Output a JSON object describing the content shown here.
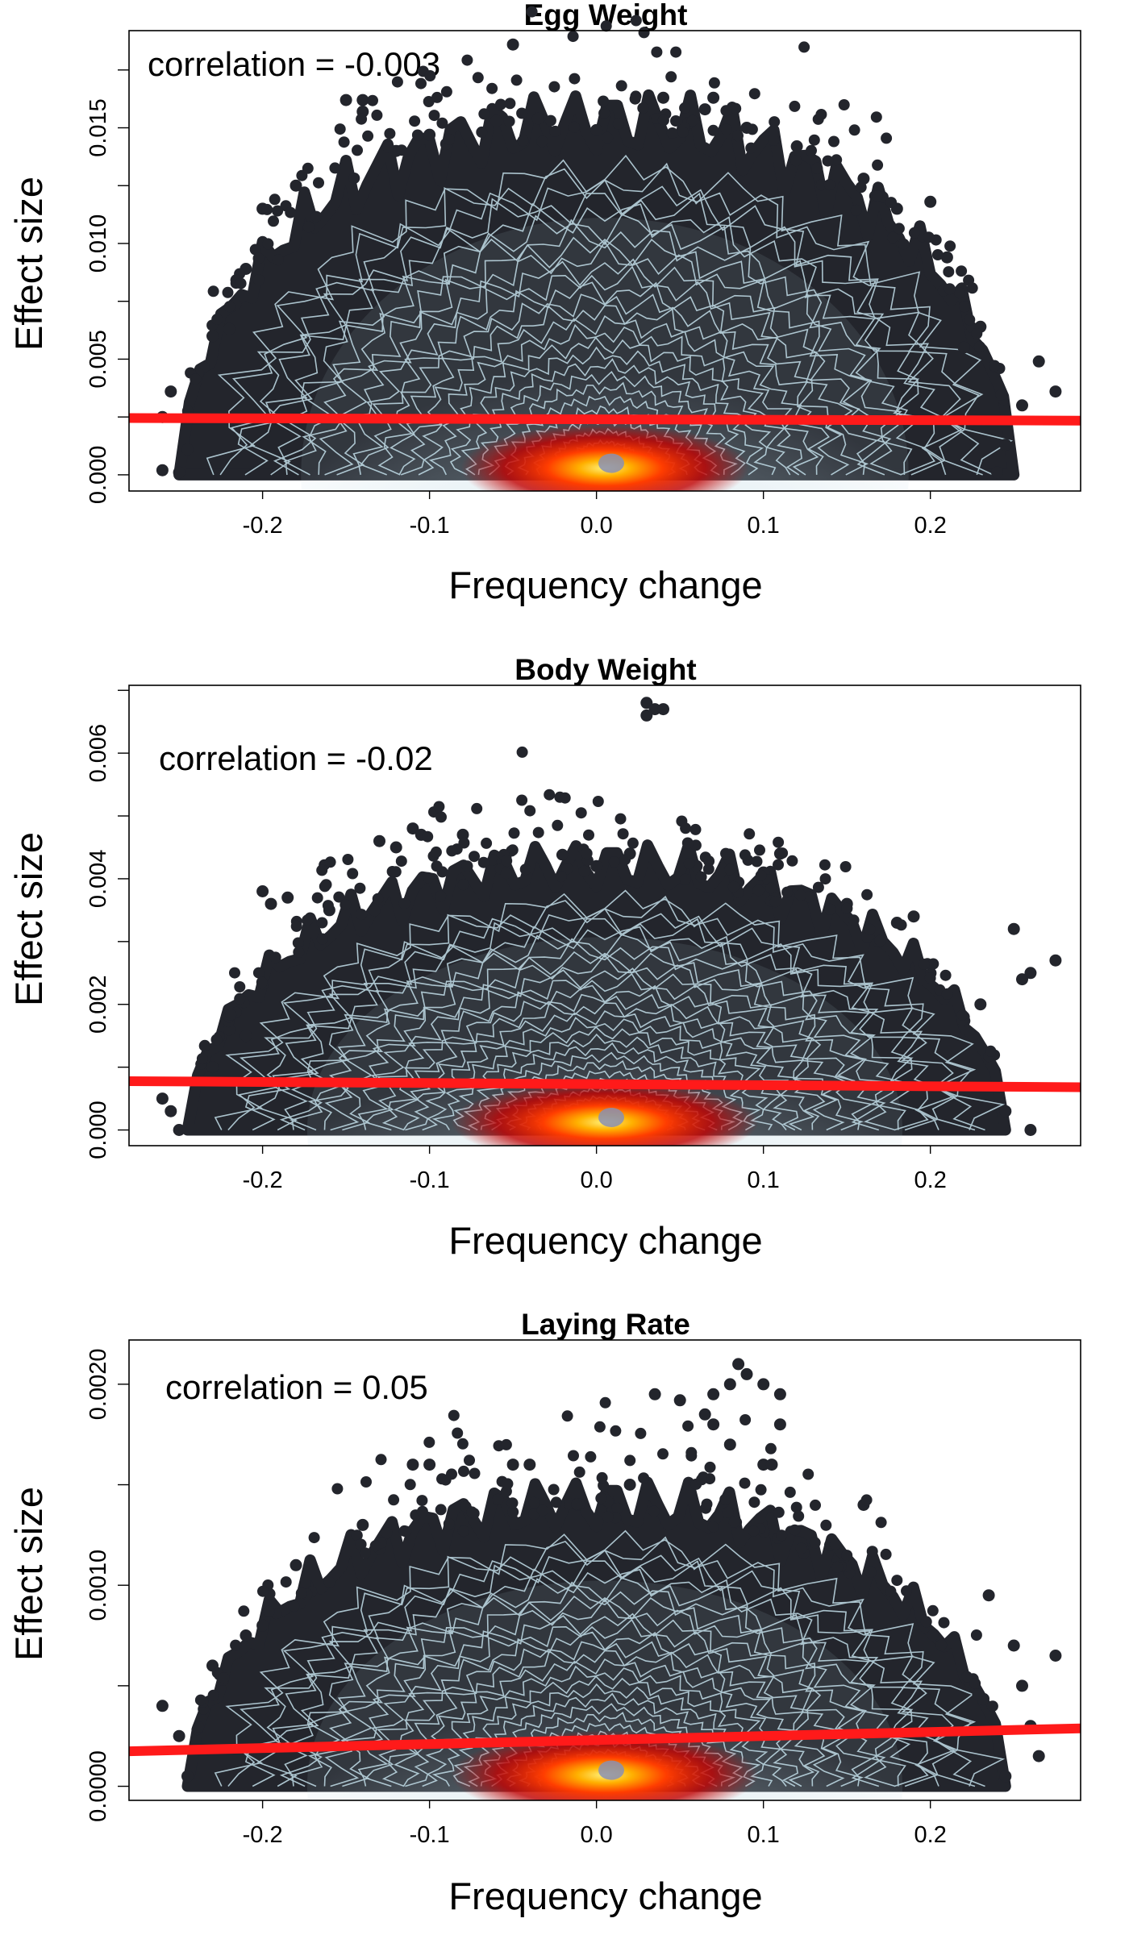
{
  "figure": {
    "background": "#ffffff",
    "colors": {
      "points": "#23252c",
      "contour": "#c3dfea",
      "density_center": "#fff27a",
      "density_mid": "#ff3d00",
      "density_outer": "#c10000",
      "regression_line": "#ff1a1a"
    }
  },
  "chart_data": [
    {
      "type": "scatter",
      "title": "Egg Weight",
      "xlabel": "Frequency change",
      "ylabel": "Effect size",
      "annotation": "correlation = -0.003",
      "xlim": [
        -0.28,
        0.29
      ],
      "ylim": [
        -0.0007,
        0.0192
      ],
      "x_ticks": [
        -0.2,
        -0.1,
        0.0,
        0.1,
        0.2
      ],
      "x_tick_labels": [
        "-0.2",
        "-0.1",
        "0.0",
        "0.1",
        "0.2"
      ],
      "y_ticks": [
        0.0,
        0.0025,
        0.005,
        0.0075,
        0.01,
        0.0125,
        0.015,
        0.0175
      ],
      "y_tick_labels": [
        "0.000",
        "",
        "0.005",
        "",
        "0.010",
        "",
        "0.015",
        ""
      ],
      "density_peak": [
        0.005,
        0.0005
      ],
      "density_spread": [
        0.075,
        0.0035
      ],
      "envelope": {
        "half_width": 0.25,
        "height": 0.0152
      },
      "outliers": [
        [
          -0.05,
          0.0186
        ],
        [
          -0.15,
          0.0162
        ],
        [
          -0.14,
          0.0162
        ],
        [
          -0.14,
          0.0157
        ],
        [
          0.04,
          0.0163
        ],
        [
          0.07,
          0.0163
        ],
        [
          0.065,
          0.0158
        ],
        [
          -0.035,
          0.0154
        ],
        [
          0.055,
          0.0152
        ],
        [
          -0.1,
          0.0147
        ],
        [
          -0.09,
          0.0143
        ],
        [
          -0.2,
          0.0115
        ],
        [
          0.2,
          0.0118
        ],
        [
          0.18,
          0.0115
        ],
        [
          0.22,
          0.0055
        ],
        [
          0.23,
          0.0064
        ],
        [
          -0.22,
          0.0063
        ],
        [
          -0.23,
          0.006
        ],
        [
          -0.26,
          0.0025
        ],
        [
          -0.255,
          0.0036
        ],
        [
          0.265,
          0.0049
        ],
        [
          0.275,
          0.0036
        ],
        [
          0.255,
          0.003
        ],
        [
          -0.26,
          0.0002
        ],
        [
          -0.25,
          0.0001
        ],
        [
          0.24,
          0.0001
        ],
        [
          0.245,
          0.0013
        ],
        [
          -0.245,
          0.0011
        ],
        [
          -0.12,
          0.014
        ],
        [
          0.12,
          0.0142
        ],
        [
          -0.06,
          0.0153
        ],
        [
          0.09,
          0.015
        ],
        [
          0.0,
          0.0149
        ],
        [
          -0.18,
          0.0125
        ],
        [
          0.16,
          0.0128
        ],
        [
          -0.21,
          0.0089
        ],
        [
          0.21,
          0.0094
        ]
      ],
      "regression": {
        "intercept": 0.0024,
        "slope": -0.0002
      }
    },
    {
      "type": "scatter",
      "title": "Body Weight",
      "xlabel": "Frequency change",
      "ylabel": "Effect size",
      "annotation": "correlation = -0.02",
      "xlim": [
        -0.28,
        0.29
      ],
      "ylim": [
        -0.00025,
        0.00708
      ],
      "x_ticks": [
        -0.2,
        -0.1,
        0.0,
        0.1,
        0.2
      ],
      "x_tick_labels": [
        "-0.2",
        "-0.1",
        "0.0",
        "0.1",
        "0.2"
      ],
      "y_ticks": [
        0.0,
        0.001,
        0.002,
        0.003,
        0.004,
        0.005,
        0.006,
        0.007
      ],
      "y_tick_labels": [
        "0.000",
        "",
        "0.002",
        "",
        "0.004",
        "",
        "0.006",
        ""
      ],
      "density_peak": [
        0.005,
        0.0002
      ],
      "density_spread": [
        0.08,
        0.0012
      ],
      "envelope": {
        "half_width": 0.245,
        "height": 0.0042
      },
      "outliers": [
        [
          0.03,
          0.0068
        ],
        [
          0.035,
          0.0067
        ],
        [
          0.04,
          0.0067
        ],
        [
          0.03,
          0.0066
        ],
        [
          -0.11,
          0.0048
        ],
        [
          -0.105,
          0.0047
        ],
        [
          -0.13,
          0.0046
        ],
        [
          -0.08,
          0.0047
        ],
        [
          -0.12,
          0.0045
        ],
        [
          0.02,
          0.0044
        ],
        [
          0.11,
          0.0044
        ],
        [
          0.08,
          0.0043
        ],
        [
          0.06,
          0.0042
        ],
        [
          -0.2,
          0.0038
        ],
        [
          -0.185,
          0.0037
        ],
        [
          -0.195,
          0.0036
        ],
        [
          0.19,
          0.0034
        ],
        [
          0.18,
          0.0033
        ],
        [
          0.25,
          0.0032
        ],
        [
          0.275,
          0.0027
        ],
        [
          0.26,
          0.0025
        ],
        [
          0.255,
          0.0024
        ],
        [
          0.23,
          0.002
        ],
        [
          0.22,
          0.0018
        ],
        [
          -0.22,
          0.0016
        ],
        [
          -0.21,
          0.0015
        ],
        [
          -0.23,
          0.001
        ],
        [
          -0.26,
          0.0005
        ],
        [
          -0.255,
          0.0003
        ],
        [
          -0.25,
          0.0
        ],
        [
          0.26,
          0.0
        ],
        [
          0.245,
          0.0003
        ],
        [
          0.15,
          0.0036
        ],
        [
          -0.16,
          0.0035
        ],
        [
          0.0,
          0.0042
        ],
        [
          0.1,
          0.0041
        ]
      ],
      "regression": {
        "intercept": 0.00073,
        "slope": -0.00017
      }
    },
    {
      "type": "scatter",
      "title": "Laying Rate",
      "xlabel": "Frequency change",
      "ylabel": "Effect size",
      "annotation": "correlation = 0.05",
      "xlim": [
        -0.28,
        0.29
      ],
      "ylim": [
        -7e-05,
        0.00222
      ],
      "x_ticks": [
        -0.2,
        -0.1,
        0.0,
        0.1,
        0.2
      ],
      "x_tick_labels": [
        "-0.2",
        "-0.1",
        "0.0",
        "0.1",
        "0.2"
      ],
      "y_ticks": [
        0.0,
        0.0005,
        0.001,
        0.0015,
        0.002
      ],
      "y_tick_labels": [
        "0.0000",
        "",
        "0.0010",
        "",
        "0.0020"
      ],
      "density_peak": [
        0.005,
        8e-05
      ],
      "density_spread": [
        0.08,
        0.0004
      ],
      "envelope": {
        "half_width": 0.245,
        "height": 0.0014
      },
      "outliers": [
        [
          0.085,
          0.0021
        ],
        [
          0.09,
          0.00205
        ],
        [
          0.08,
          0.002
        ],
        [
          0.07,
          0.00195
        ],
        [
          0.1,
          0.002
        ],
        [
          0.11,
          0.00195
        ],
        [
          0.035,
          0.00195
        ],
        [
          0.05,
          0.00192
        ],
        [
          0.065,
          0.00185
        ],
        [
          0.11,
          0.0018
        ],
        [
          0.07,
          0.0018
        ],
        [
          0.08,
          0.0017
        ],
        [
          0.1,
          0.0016
        ],
        [
          0.105,
          0.0016
        ],
        [
          -0.1,
          0.0016
        ],
        [
          -0.11,
          0.0016
        ],
        [
          -0.05,
          0.0016
        ],
        [
          -0.04,
          0.0016
        ],
        [
          0.16,
          0.0014
        ],
        [
          -0.18,
          0.0011
        ],
        [
          -0.2,
          0.0008
        ],
        [
          -0.21,
          0.00075
        ],
        [
          0.235,
          0.00095
        ],
        [
          0.25,
          0.0007
        ],
        [
          0.275,
          0.00065
        ],
        [
          0.255,
          0.0005
        ],
        [
          0.26,
          0.0003
        ],
        [
          0.265,
          0.00015
        ],
        [
          -0.26,
          0.0004
        ],
        [
          -0.25,
          0.00025
        ],
        [
          -0.245,
          5e-05
        ],
        [
          0.245,
          5e-05
        ],
        [
          -0.14,
          0.0013
        ],
        [
          0.02,
          0.0015
        ],
        [
          0.14,
          0.0012
        ],
        [
          -0.23,
          0.0006
        ]
      ],
      "regression": {
        "intercept": 0.00023,
        "slope": 0.0002
      }
    }
  ]
}
